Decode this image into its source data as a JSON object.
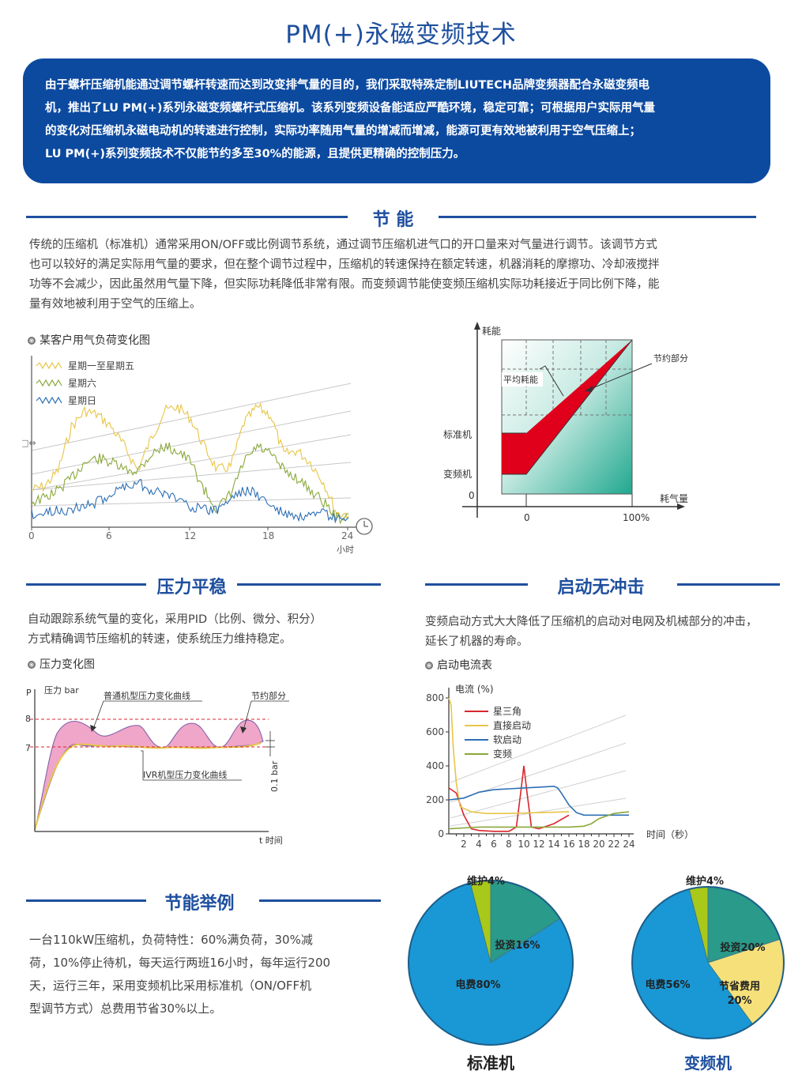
{
  "title": "PM(+)永磁变频技术",
  "intro": {
    "lines": [
      "由于螺杆压缩机能通过调节螺杆转速而达到改变排气量的目的，我们采取特殊定制LIUTECH品牌变频器配合永磁变频电",
      "机，推出了LU PM(+)系列永磁变频螺杆式压缩机。该系列变频设备能适应严酷环境，稳定可靠；可根据用户实际用气量",
      "的变化对压缩机永磁电动机的转速进行控制，实际功率随用气量的增减而增减，能源可更有效地被利用于空气压缩上；",
      "LU PM(+)系列变频技术不仅能节约多至30%的能源，且提供更精确的控制压力。"
    ]
  },
  "energy": {
    "heading": "节 能",
    "lines": [
      "传统的压缩机（标准机）通常采用ON/OFF或比例调节系统，通过调节压缩机进气口的开口量来对气量进行调节。该调节方式",
      "也可以较好的满足实际用气量的要求，但在整个调节过程中，压缩机的转速保持在额定转速，机器消耗的摩擦功、冷却液搅拌",
      "功等不会减少，因此虽然用气量下降，但实际功耗降低非常有限。而变频调节能使变频压缩机实际功耗接近于同比例下降，能",
      "量有效地被利用于空气的压缩上。"
    ]
  },
  "chart_load": {
    "caption": "某客户用气负荷变化图",
    "legend": [
      "星期一至星期五",
      "星期六",
      "星期日"
    ],
    "colors": [
      "#e8c547",
      "#8aa83a",
      "#2d6fb5"
    ],
    "ylabel_icon": "□⇔",
    "xticks": [
      "0",
      "6",
      "12",
      "18",
      "24"
    ],
    "xunit": "小时",
    "clock_icon": "clock-icon"
  },
  "chart_power": {
    "ylabel": "耗能",
    "xlabel": "耗气量",
    "standard": "标准机",
    "vfd": "变频机",
    "zero_y": "0",
    "zero_x": "0",
    "hundred": "100%",
    "avg": "平均耗能",
    "saving": "节约部分"
  },
  "pressure": {
    "heading": "压力平稳",
    "lines": [
      "自动跟踪系统气量的变化，采用PID（比例、微分、积分）",
      "方式精确调节压缩机的转速，使系统压力维持稳定。"
    ],
    "caption": "压力变化图",
    "chart": {
      "p": "P",
      "unit": "压力 bar",
      "y8": "8",
      "y7": "7",
      "normal_curve": "普通机型压力变化曲线",
      "saving": "节约部分",
      "ivr_curve": "IVR机型压力变化曲线",
      "delta": "0.1 bar",
      "xlabel": "t 时间"
    }
  },
  "startup": {
    "heading": "启动无冲击",
    "lines": [
      "变频启动方式大大降低了压缩机的启动对电网及机械部分的冲击，",
      "延长了机器的寿命。"
    ],
    "caption": "启动电流表"
  },
  "chart_data": {
    "type": "line",
    "title": "",
    "ylabel": "电流 (%)",
    "xlabel": "时间（秒）",
    "ylim": [
      0,
      800
    ],
    "xlim": [
      0,
      24
    ],
    "yticks": [
      "800",
      "600",
      "400",
      "200",
      "0"
    ],
    "xticks": [
      "2",
      "4",
      "6",
      "8",
      "10",
      "12",
      "14",
      "16",
      "18",
      "20",
      "22",
      "24"
    ],
    "legend_position": "top",
    "series": [
      {
        "name": "星三角",
        "color": "#d8262c",
        "x": [
          0,
          1,
          2,
          3,
          4,
          6,
          8,
          9,
          9.6,
          10,
          10.4,
          11,
          12,
          14,
          16
        ],
        "y": [
          270,
          240,
          110,
          30,
          20,
          15,
          15,
          40,
          250,
          400,
          250,
          40,
          30,
          60,
          110
        ]
      },
      {
        "name": "直接启动",
        "color": "#e8c547",
        "x": [
          0,
          0.3,
          0.6,
          1,
          1.5,
          3,
          5,
          8,
          12,
          16
        ],
        "y": [
          800,
          760,
          500,
          300,
          160,
          130,
          120,
          120,
          125,
          130
        ]
      },
      {
        "name": "软启动",
        "color": "#2d6fb5",
        "x": [
          0,
          2,
          4,
          6,
          8,
          10,
          12,
          14,
          14.5,
          15,
          16,
          17,
          18,
          24
        ],
        "y": [
          200,
          210,
          245,
          260,
          265,
          270,
          275,
          280,
          270,
          240,
          170,
          125,
          110,
          110
        ]
      },
      {
        "name": "变频",
        "color": "#8aa83a",
        "x": [
          0,
          2,
          4,
          6,
          8,
          10,
          12,
          14,
          16,
          18,
          19,
          20,
          22,
          24
        ],
        "y": [
          30,
          35,
          40,
          40,
          40,
          40,
          40,
          40,
          40,
          45,
          60,
          90,
          120,
          130
        ]
      }
    ]
  },
  "example": {
    "heading": "节能举例",
    "lines": [
      "一台110kW压缩机，负荷特性：60%满负荷，30%减",
      "荷，10%停止待机，每天运行两班16小时，每年运行200",
      "天，运行三年，采用变频机比采用标准机（ON/OFF机",
      "型调节方式）总费用节省30%以上。"
    ]
  },
  "pie_standard": {
    "title": "标准机",
    "slices": [
      {
        "label": "维护4%",
        "value": 4,
        "color": "#a8c81a"
      },
      {
        "label": "投资16%",
        "value": 16,
        "color": "#2a9a8a"
      },
      {
        "label": "电费80%",
        "value": 80,
        "color": "#1a98d5"
      }
    ]
  },
  "pie_vfd": {
    "title": "变频机",
    "slices": [
      {
        "label": "维护4%",
        "value": 4,
        "color": "#a8c81a"
      },
      {
        "label": "投资20%",
        "value": 20,
        "color": "#2a9a8a"
      },
      {
        "label": "节省费用",
        "label2": "20%",
        "value": 20,
        "color": "#f5e07a"
      },
      {
        "label": "电费56%",
        "value": 56,
        "color": "#1a98d5"
      }
    ]
  }
}
